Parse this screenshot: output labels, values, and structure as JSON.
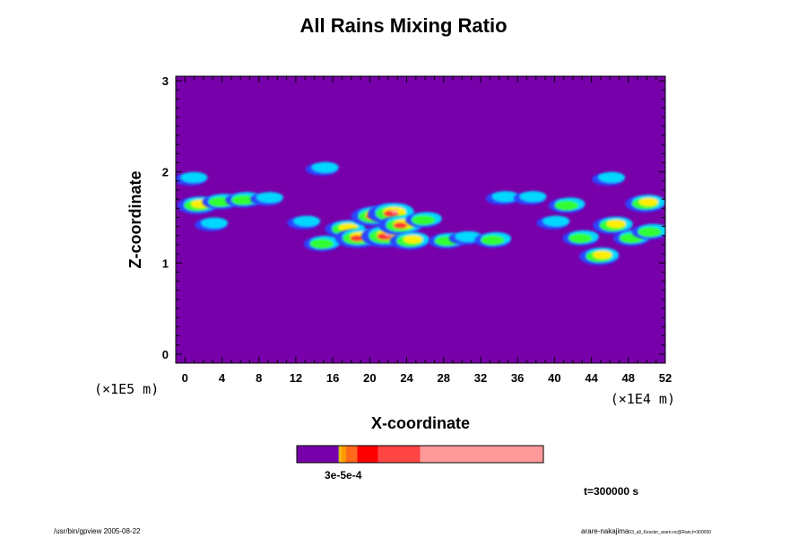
{
  "chart_data": {
    "type": "heatmap",
    "title": "All Rains Mixing Ratio",
    "xlabel": "X-coordinate",
    "ylabel": "Z-coordinate",
    "x_unit_label": "(×1E4 m)",
    "y_unit_label": "(×1E5 m)",
    "xlim": [
      -1,
      52
    ],
    "ylim": [
      -0.1,
      3.05
    ],
    "x_ticks": [
      0,
      4,
      8,
      12,
      16,
      20,
      24,
      28,
      32,
      36,
      40,
      44,
      48,
      52
    ],
    "y_ticks": [
      0,
      1,
      2,
      3
    ],
    "background_color": "#7700aa",
    "colorbar": {
      "segments": [
        {
          "from": 0,
          "to": 0.17,
          "color": "#7700aa"
        },
        {
          "from": 0.17,
          "to": 0.175,
          "color": "#c0c000"
        },
        {
          "from": 0.175,
          "to": 0.182,
          "color": "#ffb000"
        },
        {
          "from": 0.182,
          "to": 0.2,
          "color": "#ff9900"
        },
        {
          "from": 0.2,
          "to": 0.245,
          "color": "#ff6a1a"
        },
        {
          "from": 0.245,
          "to": 0.33,
          "color": "#ff0000"
        },
        {
          "from": 0.33,
          "to": 0.5,
          "color": "#ff4444"
        },
        {
          "from": 0.5,
          "to": 1.0,
          "color": "#ff9a9a"
        }
      ],
      "tick_labels": "3e-5e-4"
    },
    "features": [
      {
        "x": 1.5,
        "z": 1.64,
        "level": 3
      },
      {
        "x": 4.0,
        "z": 1.68,
        "level": 2
      },
      {
        "x": 6.5,
        "z": 1.7,
        "level": 2
      },
      {
        "x": 9.0,
        "z": 1.71,
        "level": 1
      },
      {
        "x": 3.0,
        "z": 1.43,
        "level": 1
      },
      {
        "x": 0.8,
        "z": 1.93,
        "level": 1
      },
      {
        "x": 15.0,
        "z": 2.04,
        "level": 1
      },
      {
        "x": 13.0,
        "z": 1.45,
        "level": 1
      },
      {
        "x": 15.0,
        "z": 1.22,
        "level": 2
      },
      {
        "x": 17.5,
        "z": 1.38,
        "level": 3
      },
      {
        "x": 18.8,
        "z": 1.28,
        "level": 4
      },
      {
        "x": 20.5,
        "z": 1.52,
        "level": 4
      },
      {
        "x": 21.8,
        "z": 1.3,
        "level": 5
      },
      {
        "x": 22.5,
        "z": 1.55,
        "level": 5
      },
      {
        "x": 23.5,
        "z": 1.42,
        "level": 4
      },
      {
        "x": 24.5,
        "z": 1.25,
        "level": 3
      },
      {
        "x": 26.0,
        "z": 1.48,
        "level": 2
      },
      {
        "x": 28.5,
        "z": 1.25,
        "level": 2
      },
      {
        "x": 30.5,
        "z": 1.28,
        "level": 1
      },
      {
        "x": 33.5,
        "z": 1.26,
        "level": 2
      },
      {
        "x": 34.5,
        "z": 1.72,
        "level": 1
      },
      {
        "x": 37.5,
        "z": 1.72,
        "level": 1
      },
      {
        "x": 40.0,
        "z": 1.45,
        "level": 1
      },
      {
        "x": 41.5,
        "z": 1.64,
        "level": 2
      },
      {
        "x": 43.0,
        "z": 1.28,
        "level": 2
      },
      {
        "x": 45.0,
        "z": 1.08,
        "level": 3
      },
      {
        "x": 46.5,
        "z": 1.42,
        "level": 3
      },
      {
        "x": 48.5,
        "z": 1.28,
        "level": 2
      },
      {
        "x": 50.0,
        "z": 1.66,
        "level": 3
      },
      {
        "x": 46.0,
        "z": 1.93,
        "level": 1
      },
      {
        "x": 50.5,
        "z": 1.35,
        "level": 2
      }
    ]
  },
  "footer": {
    "time_label": "t=300000 s",
    "left_note": "/usr/bin/gpview 2005-08-22",
    "right_note_main": "arare-nakajima",
    "right_note_small": "03_all_Kessler_arare.nc@Rain,t=300000"
  }
}
